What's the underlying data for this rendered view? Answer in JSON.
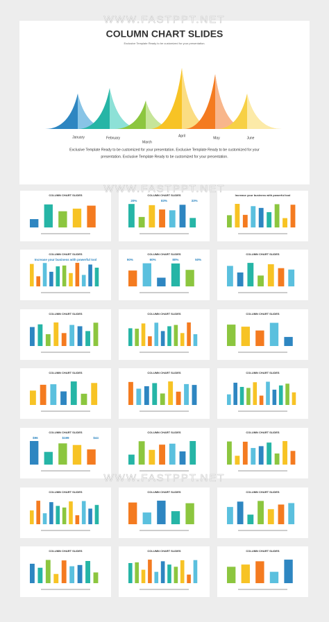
{
  "watermark": "WWW.FASTPPT.NET",
  "main_slide": {
    "title": "COLUMN CHART SLIDES",
    "subtitle": "Exclusive Template Ready to be customized for your presentation.",
    "months": [
      "January",
      "February",
      "March",
      "April",
      "May",
      "June"
    ],
    "body_lines": [
      "Exclusive Template Ready to be customized for your presentation. Exclusive Template Ready to be customized for your",
      "presentation. Exclusive Template Ready to be customized for your presentation."
    ]
  },
  "thumbnails": [
    {
      "title": "COLUMN CHART SLIDES"
    },
    {
      "title": "COLUMN CHART SLIDES",
      "labels": [
        "20%",
        "83%",
        "33%"
      ]
    },
    {
      "title": "Increase your business with powerful tool"
    },
    {
      "title": "COLUMN CHART SLIDES",
      "labels": [
        "Increase your business with powerful tool"
      ]
    },
    {
      "title": "COLUMN CHART SLIDES",
      "labels": [
        "90%",
        "60%",
        "80%",
        "50%"
      ]
    },
    {
      "title": "COLUMN CHART SLIDES"
    },
    {
      "title": "COLUMN CHART SLIDES"
    },
    {
      "title": "COLUMN CHART SLIDES"
    },
    {
      "title": "COLUMN CHART SLIDES"
    },
    {
      "title": "COLUMN CHART SLIDES"
    },
    {
      "title": "COLUMN CHART SLIDES"
    },
    {
      "title": "COLUMN CHART SLIDES"
    },
    {
      "title": "COLUMN CHART SLIDES",
      "labels": [
        "$96",
        "$199",
        "$44"
      ]
    },
    {
      "title": "COLUMN CHART SLIDES"
    },
    {
      "title": "COLUMN CHART SLIDES"
    },
    {
      "title": "COLUMN CHART SLIDES"
    },
    {
      "title": "COLUMN CHART SLIDES"
    },
    {
      "title": "COLUMN CHART SLIDES"
    },
    {
      "title": "COLUMN CHART SLIDES"
    },
    {
      "title": "COLUMN CHART SLIDES"
    },
    {
      "title": "COLUMN CHART SLIDES"
    }
  ]
}
